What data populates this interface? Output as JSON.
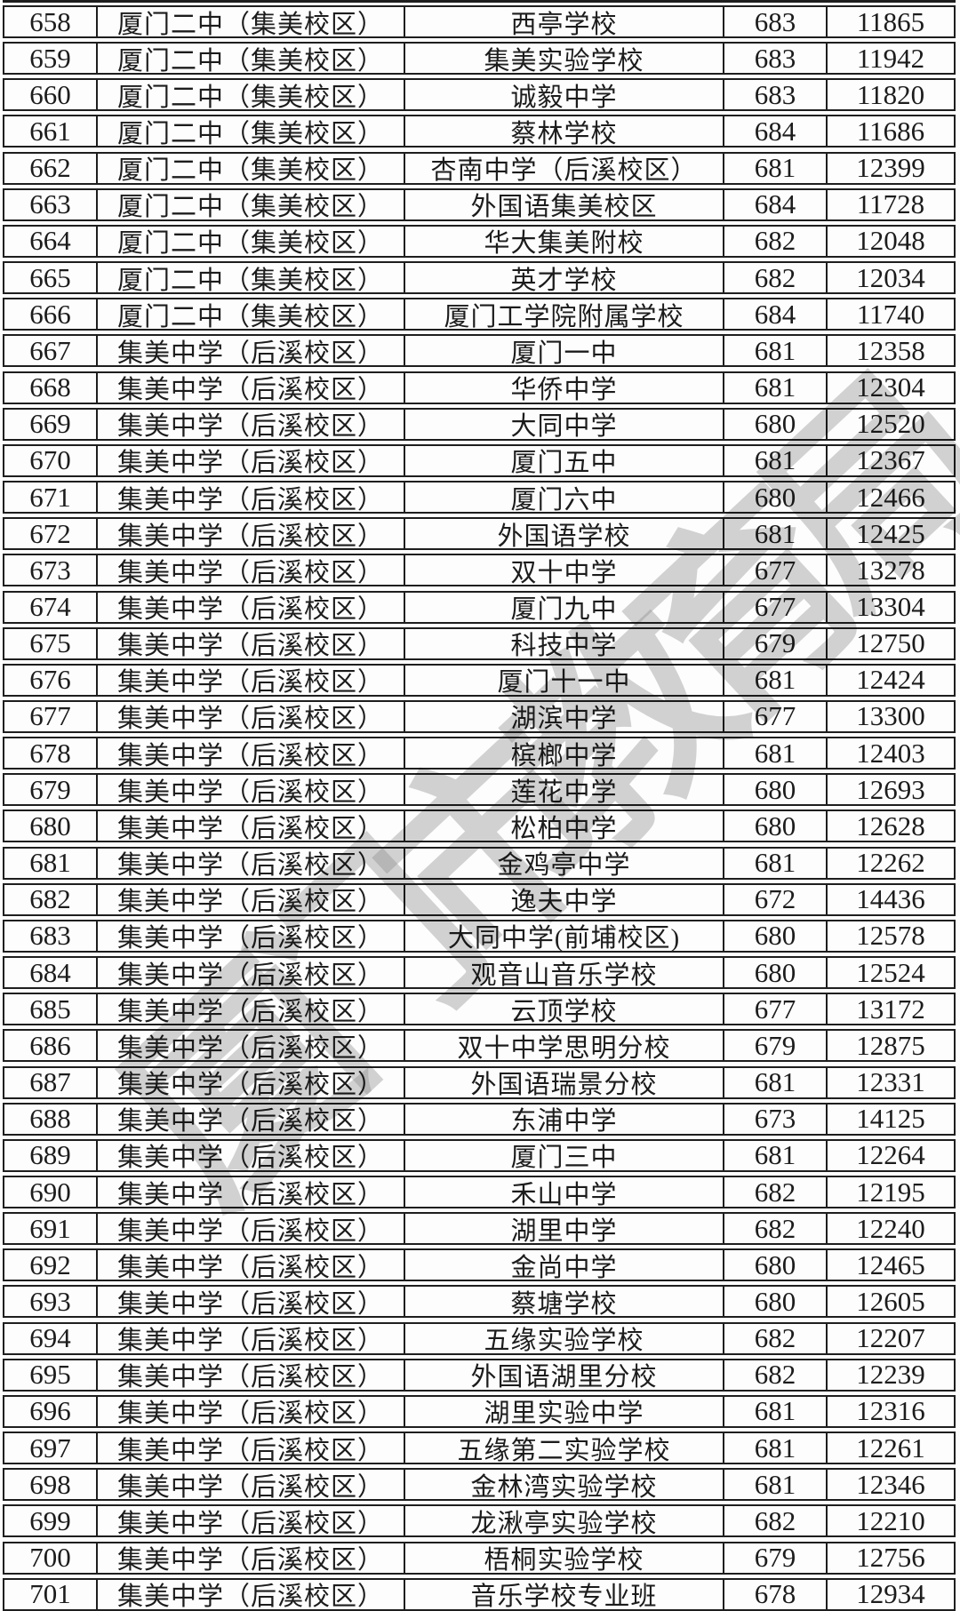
{
  "watermark": {
    "text": "厦门市教育局",
    "color": "#929292"
  },
  "colors": {
    "background": "#fdfdfd",
    "border": "#1e1e1e",
    "text": "#1c1c1c"
  },
  "table": {
    "columns_semantic": [
      "row_number",
      "assigned_school",
      "source_school",
      "score",
      "rank"
    ],
    "rows": [
      {
        "no": "658",
        "school": "厦门二中（集美校区）",
        "target": "西亭学校",
        "score": "683",
        "rank": "11865"
      },
      {
        "no": "659",
        "school": "厦门二中（集美校区）",
        "target": "集美实验学校",
        "score": "683",
        "rank": "11942"
      },
      {
        "no": "660",
        "school": "厦门二中（集美校区）",
        "target": "诚毅中学",
        "score": "683",
        "rank": "11820"
      },
      {
        "no": "661",
        "school": "厦门二中（集美校区）",
        "target": "蔡林学校",
        "score": "684",
        "rank": "11686"
      },
      {
        "no": "662",
        "school": "厦门二中（集美校区）",
        "target": "杏南中学（后溪校区）",
        "score": "681",
        "rank": "12399"
      },
      {
        "no": "663",
        "school": "厦门二中（集美校区）",
        "target": "外国语集美校区",
        "score": "684",
        "rank": "11728"
      },
      {
        "no": "664",
        "school": "厦门二中（集美校区）",
        "target": "华大集美附校",
        "score": "682",
        "rank": "12048"
      },
      {
        "no": "665",
        "school": "厦门二中（集美校区）",
        "target": "英才学校",
        "score": "682",
        "rank": "12034"
      },
      {
        "no": "666",
        "school": "厦门二中（集美校区）",
        "target": "厦门工学院附属学校",
        "score": "684",
        "rank": "11740"
      },
      {
        "no": "667",
        "school": "集美中学（后溪校区）",
        "target": "厦门一中",
        "score": "681",
        "rank": "12358"
      },
      {
        "no": "668",
        "school": "集美中学（后溪校区）",
        "target": "华侨中学",
        "score": "681",
        "rank": "12304"
      },
      {
        "no": "669",
        "school": "集美中学（后溪校区）",
        "target": "大同中学",
        "score": "680",
        "rank": "12520"
      },
      {
        "no": "670",
        "school": "集美中学（后溪校区）",
        "target": "厦门五中",
        "score": "681",
        "rank": "12367"
      },
      {
        "no": "671",
        "school": "集美中学（后溪校区）",
        "target": "厦门六中",
        "score": "680",
        "rank": "12466"
      },
      {
        "no": "672",
        "school": "集美中学（后溪校区）",
        "target": "外国语学校",
        "score": "681",
        "rank": "12425"
      },
      {
        "no": "673",
        "school": "集美中学（后溪校区）",
        "target": "双十中学",
        "score": "677",
        "rank": "13278"
      },
      {
        "no": "674",
        "school": "集美中学（后溪校区）",
        "target": "厦门九中",
        "score": "677",
        "rank": "13304"
      },
      {
        "no": "675",
        "school": "集美中学（后溪校区）",
        "target": "科技中学",
        "score": "679",
        "rank": "12750"
      },
      {
        "no": "676",
        "school": "集美中学（后溪校区）",
        "target": "厦门十一中",
        "score": "681",
        "rank": "12424"
      },
      {
        "no": "677",
        "school": "集美中学（后溪校区）",
        "target": "湖滨中学",
        "score": "677",
        "rank": "13300"
      },
      {
        "no": "678",
        "school": "集美中学（后溪校区）",
        "target": "槟榔中学",
        "score": "681",
        "rank": "12403"
      },
      {
        "no": "679",
        "school": "集美中学（后溪校区）",
        "target": "莲花中学",
        "score": "680",
        "rank": "12693"
      },
      {
        "no": "680",
        "school": "集美中学（后溪校区）",
        "target": "松柏中学",
        "score": "680",
        "rank": "12628"
      },
      {
        "no": "681",
        "school": "集美中学（后溪校区）",
        "target": "金鸡亭中学",
        "score": "681",
        "rank": "12262"
      },
      {
        "no": "682",
        "school": "集美中学（后溪校区）",
        "target": "逸夫中学",
        "score": "672",
        "rank": "14436"
      },
      {
        "no": "683",
        "school": "集美中学（后溪校区）",
        "target": "大同中学(前埔校区)",
        "score": "680",
        "rank": "12578"
      },
      {
        "no": "684",
        "school": "集美中学（后溪校区）",
        "target": "观音山音乐学校",
        "score": "680",
        "rank": "12524"
      },
      {
        "no": "685",
        "school": "集美中学（后溪校区）",
        "target": "云顶学校",
        "score": "677",
        "rank": "13172"
      },
      {
        "no": "686",
        "school": "集美中学（后溪校区）",
        "target": "双十中学思明分校",
        "score": "679",
        "rank": "12875"
      },
      {
        "no": "687",
        "school": "集美中学（后溪校区）",
        "target": "外国语瑞景分校",
        "score": "681",
        "rank": "12331"
      },
      {
        "no": "688",
        "school": "集美中学（后溪校区）",
        "target": "东浦中学",
        "score": "673",
        "rank": "14125"
      },
      {
        "no": "689",
        "school": "集美中学（后溪校区）",
        "target": "厦门三中",
        "score": "681",
        "rank": "12264"
      },
      {
        "no": "690",
        "school": "集美中学（后溪校区）",
        "target": "禾山中学",
        "score": "682",
        "rank": "12195"
      },
      {
        "no": "691",
        "school": "集美中学（后溪校区）",
        "target": "湖里中学",
        "score": "682",
        "rank": "12240"
      },
      {
        "no": "692",
        "school": "集美中学（后溪校区）",
        "target": "金尚中学",
        "score": "680",
        "rank": "12465"
      },
      {
        "no": "693",
        "school": "集美中学（后溪校区）",
        "target": "蔡塘学校",
        "score": "680",
        "rank": "12605"
      },
      {
        "no": "694",
        "school": "集美中学（后溪校区）",
        "target": "五缘实验学校",
        "score": "682",
        "rank": "12207"
      },
      {
        "no": "695",
        "school": "集美中学（后溪校区）",
        "target": "外国语湖里分校",
        "score": "682",
        "rank": "12239"
      },
      {
        "no": "696",
        "school": "集美中学（后溪校区）",
        "target": "湖里实验中学",
        "score": "681",
        "rank": "12316"
      },
      {
        "no": "697",
        "school": "集美中学（后溪校区）",
        "target": "五缘第二实验学校",
        "score": "681",
        "rank": "12261"
      },
      {
        "no": "698",
        "school": "集美中学（后溪校区）",
        "target": "金林湾实验学校",
        "score": "681",
        "rank": "12346"
      },
      {
        "no": "699",
        "school": "集美中学（后溪校区）",
        "target": "龙湫亭实验学校",
        "score": "682",
        "rank": "12210"
      },
      {
        "no": "700",
        "school": "集美中学（后溪校区）",
        "target": "梧桐实验学校",
        "score": "679",
        "rank": "12756"
      },
      {
        "no": "701",
        "school": "集美中学（后溪校区）",
        "target": "音乐学校专业班",
        "score": "678",
        "rank": "12934"
      }
    ]
  }
}
